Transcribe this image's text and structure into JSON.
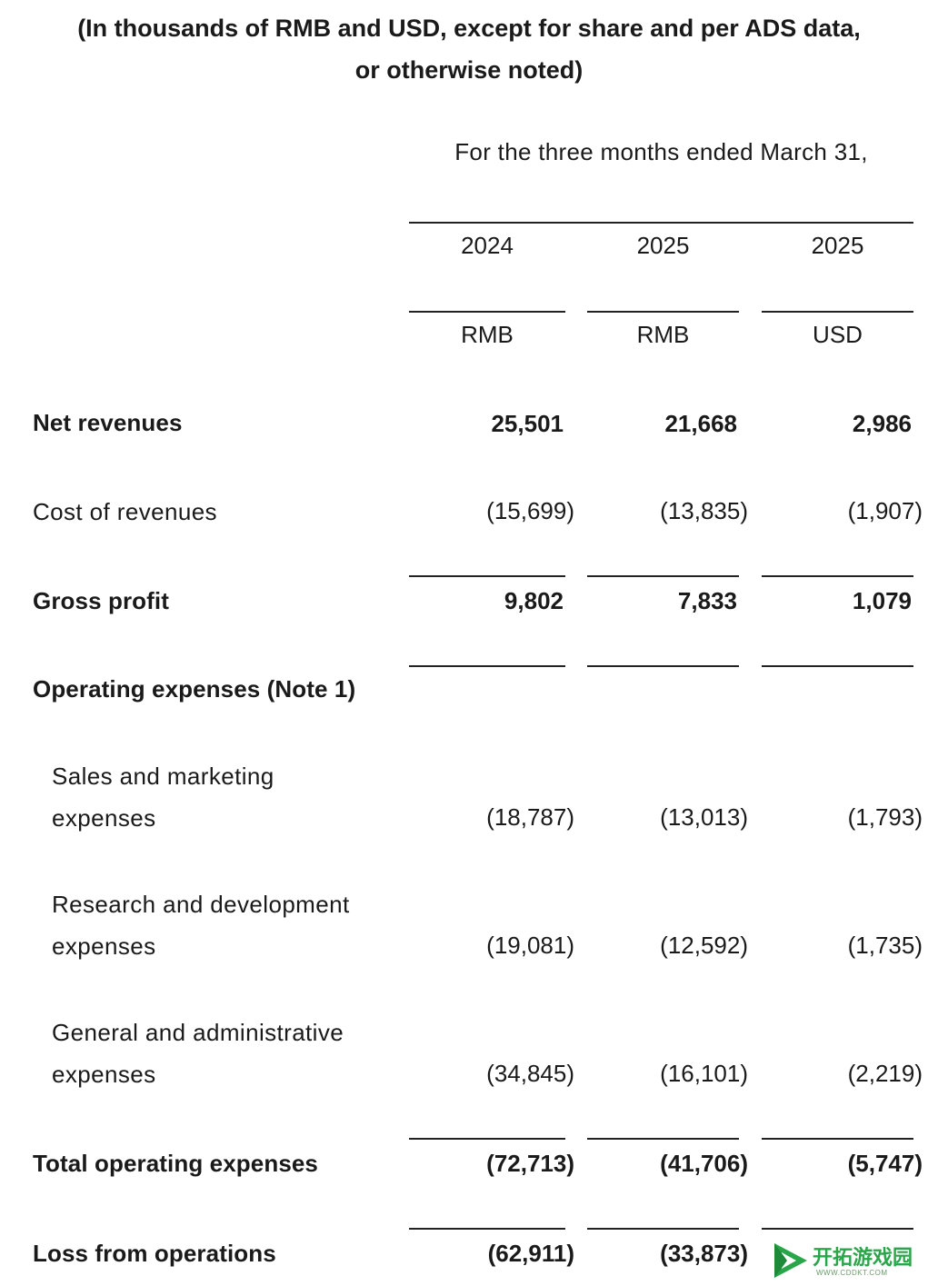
{
  "header": {
    "title_line1": "(In thousands of RMB and USD, except for share and per ADS data,",
    "title_line2": "or otherwise noted)",
    "period": "For the three months ended March 31,",
    "columns": [
      {
        "year": "2024",
        "currency": "RMB"
      },
      {
        "year": "2025",
        "currency": "RMB"
      },
      {
        "year": "2025",
        "currency": "USD"
      }
    ]
  },
  "rows": [
    {
      "label": "Net revenues",
      "bold": true,
      "values": [
        "25,501",
        "21,668",
        "2,986"
      ]
    },
    {
      "label": "Cost of revenues",
      "bold": false,
      "values": [
        "(15,699)",
        "(13,835)",
        "(1,907)"
      ]
    },
    {
      "label": "Gross profit",
      "bold": true,
      "values": [
        "9,802",
        "7,833",
        "1,079"
      ]
    },
    {
      "label": "Operating expenses (Note 1)",
      "bold": true,
      "values": []
    },
    {
      "label_line1": "Sales and marketing",
      "label_line2": "expenses",
      "bold": false,
      "values": [
        "(18,787)",
        "(13,013)",
        "(1,793)"
      ]
    },
    {
      "label_line1": "Research and development",
      "label_line2": "expenses",
      "bold": false,
      "values": [
        "(19,081)",
        "(12,592)",
        "(1,735)"
      ]
    },
    {
      "label_line1": "General and administrative",
      "label_line2": "expenses",
      "bold": false,
      "values": [
        "(34,845)",
        "(16,101)",
        "(2,219)"
      ]
    },
    {
      "label": "Total operating expenses",
      "bold": true,
      "values": [
        "(72,713)",
        "(41,706)",
        "(5,747)"
      ]
    },
    {
      "label": "Loss from operations",
      "bold": true,
      "values": [
        "(62,911)",
        "(33,873)",
        ""
      ]
    }
  ],
  "watermark": {
    "text": "开拓游戏园",
    "sub": "WWW.CDDKT.COM",
    "color": "#2aa64a"
  }
}
